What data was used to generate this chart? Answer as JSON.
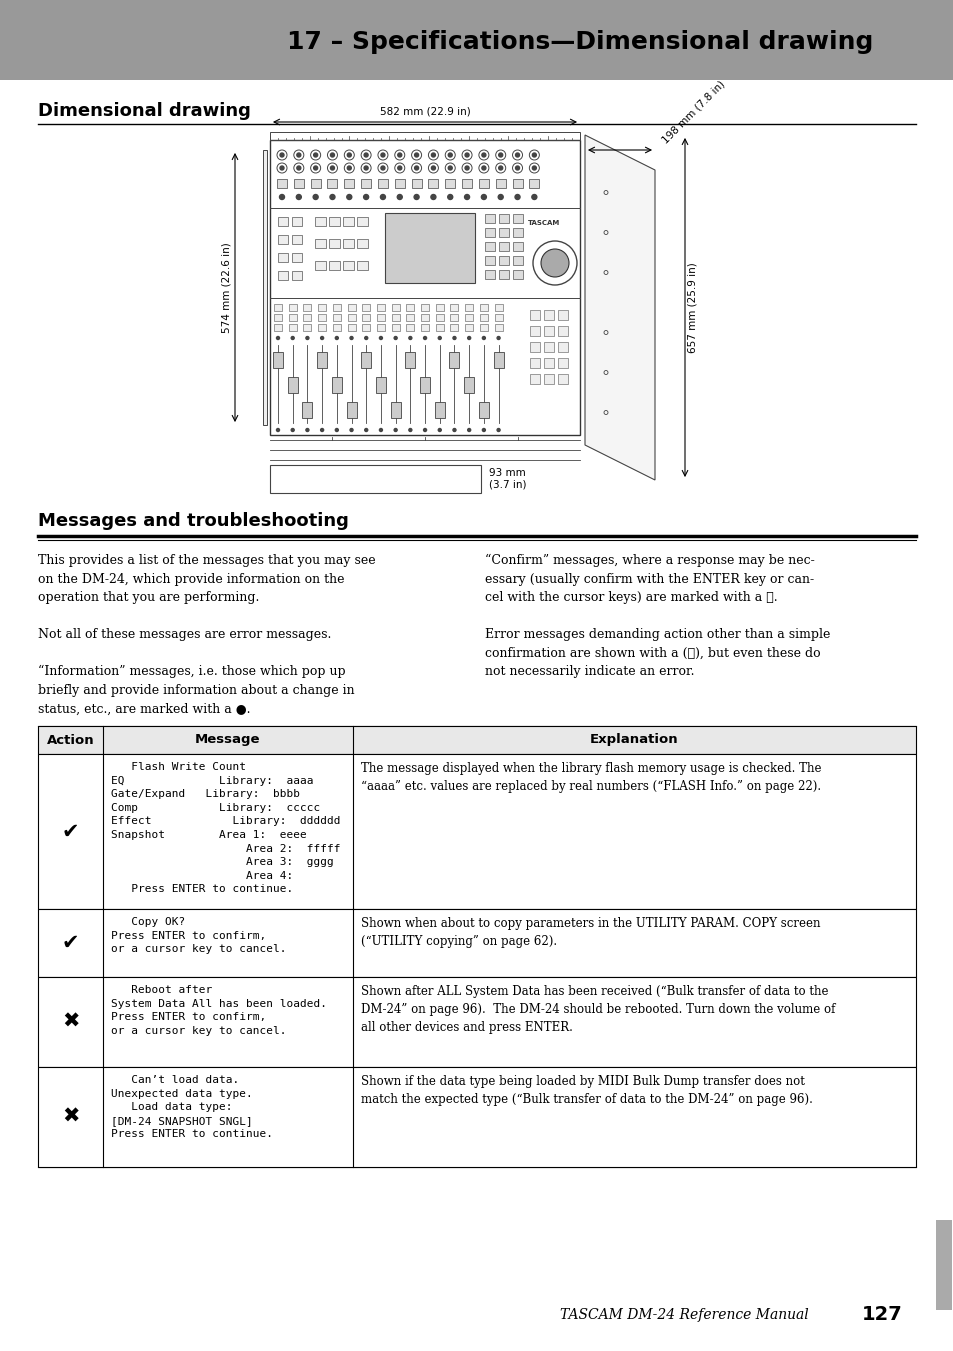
{
  "page_bg": "#ffffff",
  "header_bg": "#999999",
  "header_text": "17 – Specifications—Dimensional drawing",
  "header_text_color": "#000000",
  "section1_title": "Dimensional drawing",
  "section2_title": "Messages and troubleshooting",
  "body_text_left_col1": "This provides a list of the messages that you may see\non the DM-24, which provide information on the\noperation that you are performing.\n\nNot all of these messages are error messages.\n\n“Information” messages, i.e. those which pop up\nbriefly and provide information about a change in\nstatus, etc., are marked with a ●.",
  "body_text_right_col1": "“Confirm” messages, where a response may be nec-\nessary (usually confirm with the ENTER key or can-\ncel with the cursor keys) are marked with a ✔.\n\nError messages demanding action other than a simple\nconfirmation are shown with a (✖), but even these do\nnot necessarily indicate an error.",
  "table_headers": [
    "Action",
    "Message",
    "Explanation"
  ],
  "table_rows": [
    {
      "action": "✔",
      "message": "   Flash Write Count\nEQ              Library:  aaaa\nGate/Expand   Library:  bbbb\nComp            Library:  ccccc\nEffect            Library:  dddddd\nSnapshot        Area 1:  eeee\n                    Area 2:  fffff\n                    Area 3:  gggg\n                    Area 4:\n   Press ENTER to continue.",
      "explanation": "The message displayed when the library flash memory usage is checked. The\n“aaaa” etc. values are replaced by real numbers (“FLASH Info.” on page 22)."
    },
    {
      "action": "✔",
      "message": "   Copy OK?\nPress ENTER to confirm,\nor a cursor key to cancel.",
      "explanation": "Shown when about to copy parameters in the UTILITY PARAM. COPY screen\n(“UTILITY copying” on page 62)."
    },
    {
      "action": "✖",
      "message": "   Reboot after\nSystem Data All has been loaded.\nPress ENTER to confirm,\nor a cursor key to cancel.",
      "explanation": "Shown after ALL System Data has been received (“Bulk transfer of data to the\nDM-24” on page 96).  The DM-24 should be rebooted. Turn down the volume of\nall other devices and press ENTER."
    },
    {
      "action": "✖",
      "message": "   Can’t load data.\nUnexpected data type.\n   Load data type:\n[DM-24 SNAPSHOT SNGL]\nPress ENTER to continue.",
      "explanation": "Shown if the data type being loaded by MIDI Bulk Dump transfer does not\nmatch the expected type (“Bulk transfer of data to the DM-24” on page 96)."
    }
  ],
  "footer_text": "TASCAM DM-24 Reference Manual",
  "footer_page": "127",
  "scrollbar_color": "#aaaaaa",
  "dim_drawing_label_top": "582 mm (22.9 in)",
  "dim_drawing_label_right_top": "198 mm (7.8 in)",
  "dim_drawing_label_left": "574 mm (22.6 in)",
  "dim_drawing_label_right": "657 mm (25.9 in)",
  "dim_drawing_label_bottom": "93 mm\n(3.7 in)"
}
